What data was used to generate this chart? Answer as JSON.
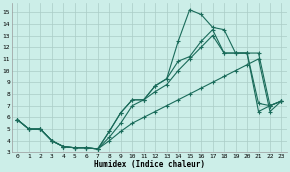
{
  "xlabel": "Humidex (Indice chaleur)",
  "background_color": "#cceee8",
  "grid_color": "#aaccc6",
  "line_color": "#1a6b5a",
  "xlim": [
    -0.5,
    23.5
  ],
  "ylim": [
    3,
    15.8
  ],
  "yticks": [
    3,
    4,
    5,
    6,
    7,
    8,
    9,
    10,
    11,
    12,
    13,
    14,
    15
  ],
  "xticks": [
    0,
    1,
    2,
    3,
    4,
    5,
    6,
    7,
    8,
    9,
    10,
    11,
    12,
    13,
    14,
    15,
    16,
    17,
    18,
    19,
    20,
    21,
    22,
    23
  ],
  "line1_x": [
    0,
    1,
    2,
    3,
    4,
    5,
    6,
    7,
    8,
    9,
    10,
    11,
    12,
    13,
    14,
    15,
    16,
    17,
    18,
    19,
    20,
    21,
    22,
    23
  ],
  "line1_y": [
    5.8,
    5.0,
    5.0,
    4.0,
    3.5,
    3.4,
    3.4,
    3.3,
    4.8,
    6.4,
    7.5,
    7.5,
    8.7,
    9.3,
    12.5,
    15.2,
    14.8,
    13.7,
    13.5,
    11.5,
    11.5,
    7.2,
    7.0,
    7.4
  ],
  "line2_x": [
    0,
    1,
    2,
    3,
    4,
    5,
    6,
    7,
    8,
    9,
    10,
    11,
    12,
    13,
    14,
    15,
    16,
    17,
    18,
    19,
    20,
    21,
    22,
    23
  ],
  "line2_y": [
    5.8,
    5.0,
    5.0,
    4.0,
    3.5,
    3.4,
    3.4,
    3.3,
    4.8,
    6.4,
    7.5,
    7.5,
    8.7,
    9.3,
    10.8,
    11.2,
    12.5,
    13.5,
    11.5,
    11.5,
    11.5,
    11.5,
    7.0,
    7.4
  ],
  "line3_x": [
    0,
    1,
    2,
    3,
    4,
    5,
    6,
    7,
    8,
    9,
    10,
    11,
    12,
    13,
    14,
    15,
    16,
    17,
    18,
    19,
    20,
    21,
    22,
    23
  ],
  "line3_y": [
    5.8,
    5.0,
    5.0,
    4.0,
    3.5,
    3.4,
    3.4,
    3.3,
    4.3,
    5.5,
    7.0,
    7.5,
    8.2,
    8.8,
    10.0,
    11.0,
    12.0,
    13.0,
    11.5,
    11.5,
    11.5,
    6.5,
    7.0,
    7.4
  ],
  "line4_x": [
    0,
    1,
    2,
    3,
    4,
    5,
    6,
    7,
    8,
    9,
    10,
    11,
    12,
    13,
    14,
    15,
    16,
    17,
    18,
    19,
    20,
    21,
    22,
    23
  ],
  "line4_y": [
    5.8,
    5.0,
    5.0,
    4.0,
    3.5,
    3.4,
    3.4,
    3.3,
    4.0,
    4.8,
    5.5,
    6.0,
    6.5,
    7.0,
    7.5,
    8.0,
    8.5,
    9.0,
    9.5,
    10.0,
    10.5,
    11.0,
    6.5,
    7.4
  ]
}
